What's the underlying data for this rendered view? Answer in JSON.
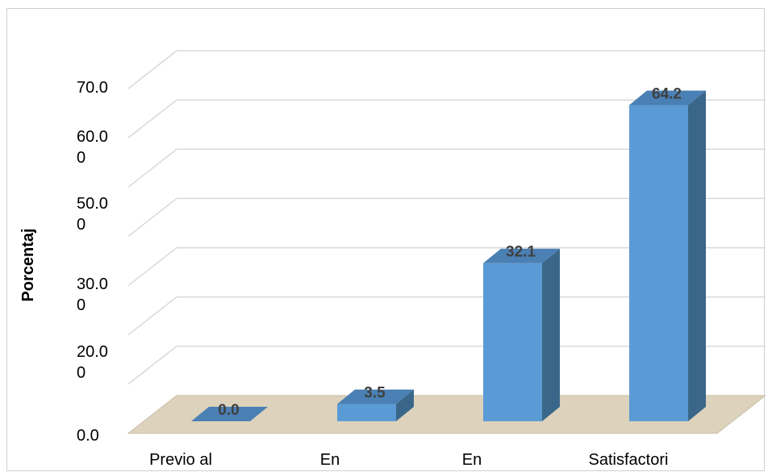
{
  "chart_data": {
    "type": "bar",
    "categories": [
      "Previo al",
      "En",
      "En",
      "Satisfactori"
    ],
    "values": [
      0.0,
      3.5,
      32.1,
      64.2
    ],
    "data_labels": [
      "0.0",
      "3.5",
      "32.1",
      "64.2"
    ],
    "ylabel": "Porcentaj",
    "ylim": [
      0,
      70
    ],
    "yticks": [
      0,
      10,
      20,
      30,
      40,
      50,
      60,
      70
    ],
    "ytick_labels": [
      [
        "0.0"
      ],
      [],
      [
        "20.0",
        "0"
      ],
      [
        "30.0",
        "0"
      ],
      [],
      [
        "50.0",
        "0"
      ],
      [
        "60.0",
        "0"
      ],
      [
        "70.0"
      ]
    ],
    "grid": true,
    "style": "3d-column",
    "colors": {
      "bar_front": "#5b9bd5",
      "bar_side": "#3a6789",
      "bar_top": "#4a80b4",
      "floor": "#ddd2bb",
      "gridline": "#d9d9d9"
    }
  }
}
